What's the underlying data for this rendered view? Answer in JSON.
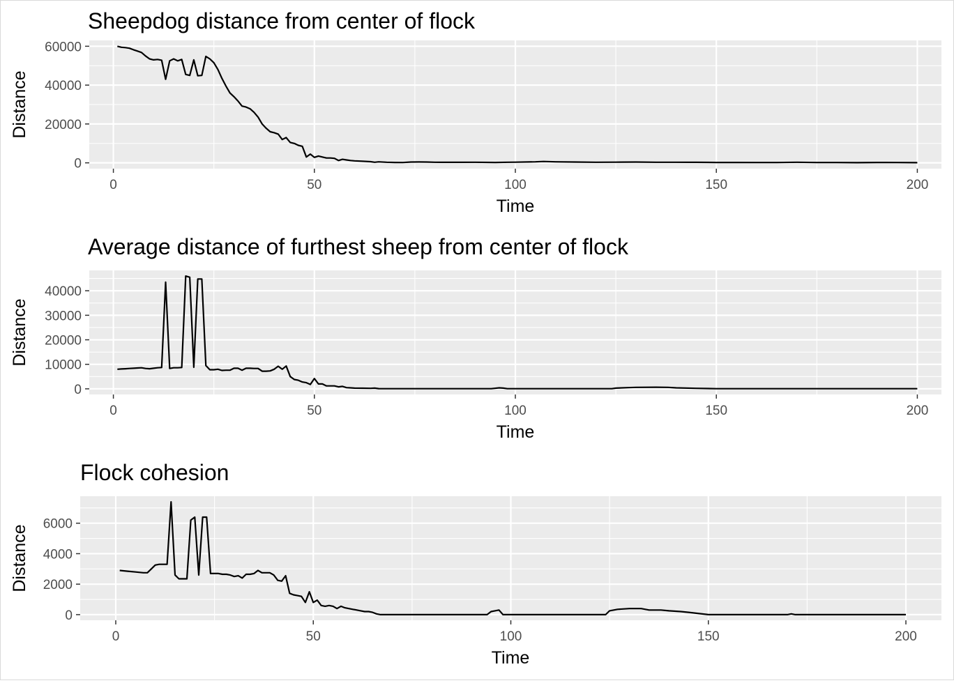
{
  "chart_data": [
    {
      "type": "line",
      "title": "Sheepdog distance from center of flock",
      "xlabel": "Time",
      "ylabel": "Distance",
      "xlim": [
        -6,
        206
      ],
      "ylim": [
        -3000,
        63000
      ],
      "xticks": [
        0,
        50,
        100,
        150,
        200
      ],
      "yticks": [
        0,
        20000,
        40000,
        60000
      ],
      "ytick_labels": [
        "0",
        "20000",
        "40000",
        "60000"
      ],
      "grid": true,
      "x": [
        1,
        2,
        3,
        4,
        5,
        6,
        7,
        8,
        9,
        10,
        11,
        12,
        13,
        14,
        15,
        16,
        17,
        18,
        19,
        20,
        21,
        22,
        23,
        24,
        25,
        26,
        27,
        28,
        29,
        30,
        31,
        32,
        33,
        34,
        35,
        36,
        37,
        38,
        39,
        40,
        41,
        42,
        43,
        44,
        45,
        46,
        47,
        48,
        49,
        50,
        51,
        52,
        53,
        54,
        55,
        56,
        57,
        58,
        59,
        60,
        62,
        64,
        65,
        66,
        68,
        70,
        72,
        74,
        76,
        78,
        80,
        85,
        90,
        95,
        98,
        100,
        105,
        107,
        110,
        115,
        120,
        125,
        130,
        135,
        140,
        145,
        150,
        155,
        160,
        165,
        170,
        175,
        180,
        185,
        190,
        195,
        200
      ],
      "y": [
        60000,
        59500,
        59300,
        59000,
        58200,
        57500,
        56800,
        55000,
        53500,
        53000,
        53200,
        52800,
        43000,
        52500,
        53500,
        52500,
        53200,
        45500,
        45000,
        53000,
        44800,
        45000,
        54800,
        53500,
        51500,
        48000,
        43500,
        39500,
        36000,
        34000,
        31800,
        29200,
        28700,
        27800,
        26000,
        23500,
        20000,
        17800,
        16000,
        15500,
        14800,
        12000,
        13000,
        10500,
        10000,
        9000,
        8500,
        3000,
        4500,
        2800,
        3500,
        3000,
        2500,
        2500,
        2300,
        1200,
        1800,
        1500,
        1200,
        1000,
        800,
        600,
        300,
        500,
        300,
        200,
        150,
        400,
        450,
        400,
        300,
        250,
        300,
        200,
        300,
        350,
        500,
        700,
        500,
        400,
        300,
        350,
        400,
        300,
        300,
        250,
        200,
        200,
        150,
        150,
        300,
        150,
        150,
        100,
        200,
        150,
        100
      ]
    },
    {
      "type": "line",
      "title": "Average distance of furthest sheep from center of flock",
      "xlabel": "Time",
      "ylabel": "Distance",
      "xlim": [
        -6,
        206
      ],
      "ylim": [
        -2300,
        48300
      ],
      "xticks": [
        0,
        50,
        100,
        150,
        200
      ],
      "yticks": [
        0,
        10000,
        20000,
        30000,
        40000
      ],
      "ytick_labels": [
        "0",
        "10000",
        "20000",
        "30000",
        "40000"
      ],
      "grid": true,
      "x": [
        1,
        2,
        3,
        4,
        5,
        6,
        7,
        8,
        9,
        10,
        11,
        12,
        13,
        14,
        15,
        16,
        17,
        18,
        19,
        20,
        21,
        22,
        23,
        24,
        25,
        26,
        27,
        28,
        29,
        30,
        31,
        32,
        33,
        34,
        35,
        36,
        37,
        38,
        39,
        40,
        41,
        42,
        43,
        44,
        45,
        46,
        47,
        48,
        49,
        50,
        51,
        52,
        53,
        54,
        55,
        56,
        57,
        58,
        59,
        60,
        62,
        64,
        65,
        66,
        68,
        70,
        75,
        80,
        85,
        90,
        94,
        96,
        97,
        98,
        100,
        105,
        110,
        115,
        120,
        124,
        125,
        128,
        130,
        135,
        138,
        140,
        145,
        150,
        155,
        160,
        165,
        170,
        175,
        180,
        185,
        190,
        195,
        200
      ],
      "y": [
        8000,
        8100,
        8200,
        8300,
        8400,
        8500,
        8600,
        8300,
        8200,
        8400,
        8600,
        8700,
        43500,
        8300,
        8600,
        8600,
        8700,
        46000,
        45500,
        8800,
        44800,
        44800,
        9500,
        7800,
        7800,
        8000,
        7500,
        7600,
        7600,
        8400,
        8400,
        7600,
        8400,
        8400,
        8300,
        8300,
        7200,
        7200,
        7300,
        8000,
        9200,
        8000,
        9300,
        5000,
        3800,
        3500,
        2800,
        2500,
        1800,
        4200,
        2000,
        2000,
        1200,
        1200,
        1200,
        800,
        1000,
        500,
        400,
        300,
        250,
        200,
        300,
        100,
        50,
        50,
        50,
        50,
        50,
        50,
        50,
        400,
        300,
        50,
        50,
        50,
        50,
        50,
        50,
        50,
        300,
        500,
        600,
        650,
        600,
        400,
        200,
        50,
        50,
        50,
        50,
        50,
        50,
        50,
        50,
        50,
        50,
        50
      ]
    },
    {
      "type": "line",
      "title": "Flock cohesion",
      "xlabel": "Time",
      "ylabel": "Distance",
      "xlim": [
        -9,
        209
      ],
      "ylim": [
        -370,
        7770
      ],
      "xticks": [
        0,
        50,
        100,
        150,
        200
      ],
      "yticks": [
        0,
        2000,
        4000,
        6000
      ],
      "ytick_labels": [
        "0",
        "2000",
        "4000",
        "6000"
      ],
      "grid": true,
      "x": [
        1,
        3,
        5,
        7,
        8,
        9,
        10,
        11,
        12,
        13,
        14,
        15,
        16,
        17,
        18,
        19,
        20,
        21,
        22,
        23,
        24,
        25,
        26,
        27,
        28,
        29,
        30,
        31,
        32,
        33,
        34,
        35,
        36,
        37,
        38,
        39,
        40,
        41,
        42,
        43,
        44,
        45,
        46,
        47,
        48,
        49,
        50,
        51,
        52,
        53,
        54,
        55,
        56,
        57,
        58,
        59,
        60,
        61,
        62,
        63,
        64,
        65,
        66,
        67,
        70,
        80,
        90,
        94,
        95,
        96,
        97,
        98,
        100,
        110,
        120,
        124,
        125,
        127,
        130,
        133,
        135,
        137,
        138,
        140,
        143,
        145,
        150,
        160,
        170,
        171,
        172,
        175,
        180,
        190,
        200
      ],
      "y": [
        2900,
        2850,
        2800,
        2750,
        2750,
        3000,
        3250,
        3300,
        3300,
        3300,
        7400,
        2600,
        2350,
        2350,
        2350,
        6200,
        6400,
        2600,
        6400,
        6400,
        2700,
        2700,
        2700,
        2650,
        2650,
        2600,
        2500,
        2550,
        2400,
        2650,
        2650,
        2700,
        2900,
        2750,
        2750,
        2750,
        2600,
        2250,
        2200,
        2550,
        1400,
        1300,
        1250,
        1200,
        800,
        1500,
        800,
        950,
        600,
        550,
        600,
        550,
        400,
        550,
        450,
        400,
        350,
        300,
        250,
        200,
        200,
        150,
        50,
        0,
        0,
        0,
        0,
        0,
        200,
        250,
        300,
        0,
        0,
        0,
        0,
        0,
        250,
        350,
        400,
        400,
        300,
        300,
        300,
        250,
        200,
        150,
        0,
        0,
        0,
        50,
        0,
        0,
        0,
        0,
        0
      ]
    }
  ]
}
